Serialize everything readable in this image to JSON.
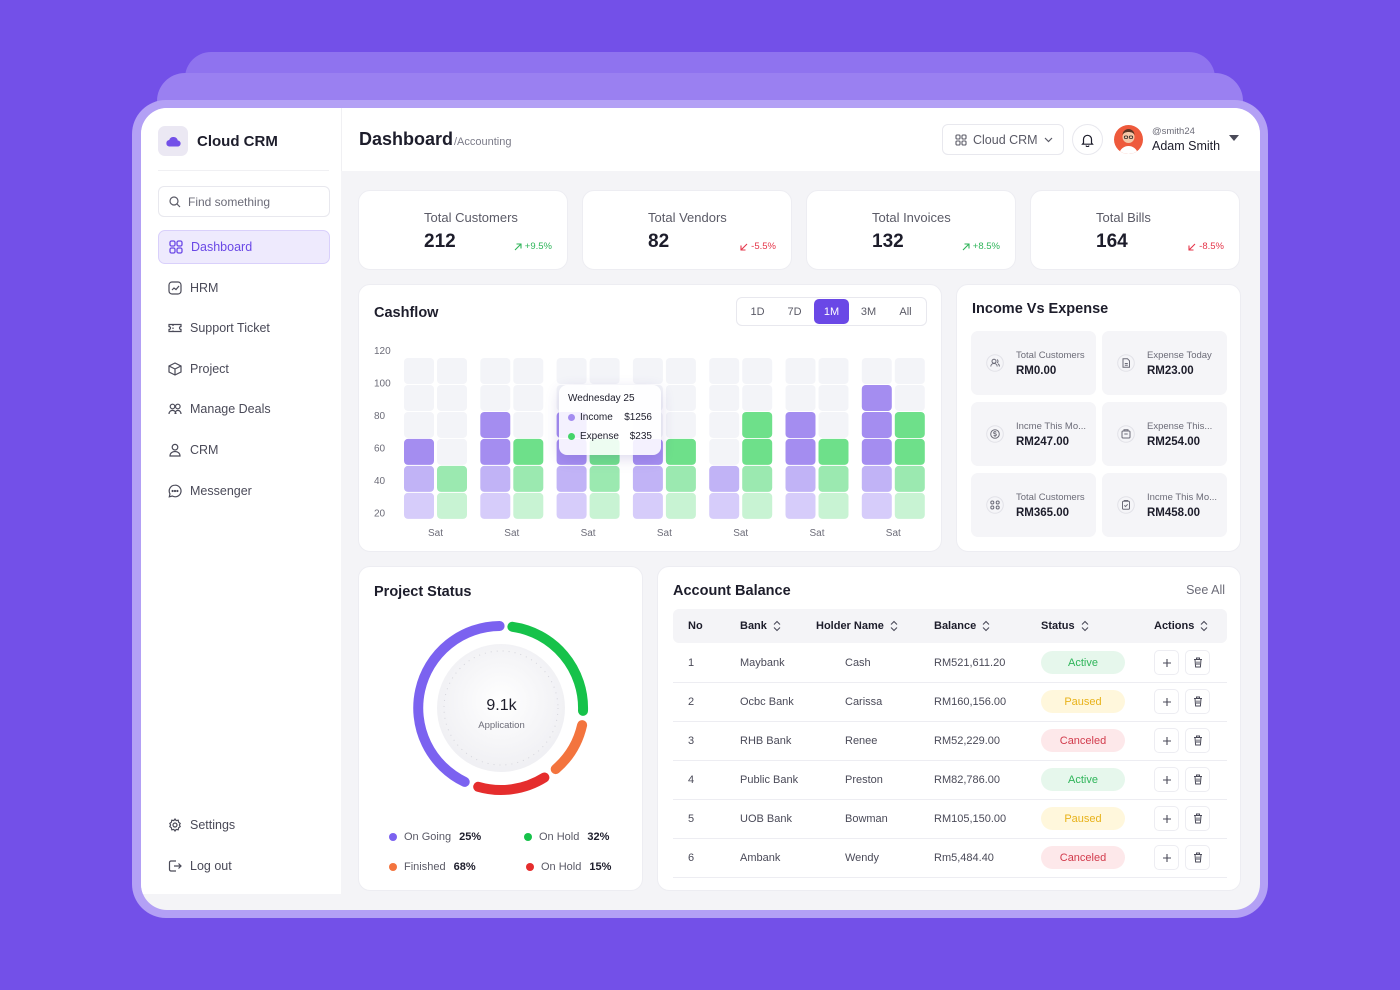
{
  "sidebar": {
    "brand": "Cloud CRM",
    "search_placeholder": "Find something",
    "items": [
      {
        "label": "Dashboard"
      },
      {
        "label": "HRM"
      },
      {
        "label": "Support Ticket"
      },
      {
        "label": "Project"
      },
      {
        "label": "Manage Deals"
      },
      {
        "label": "CRM"
      },
      {
        "label": "Messenger"
      }
    ],
    "settings_label": "Settings",
    "logout_label": "Log out"
  },
  "header": {
    "title": "Dashboard",
    "subtitle": "/Accounting",
    "workspace": "Cloud CRM",
    "user_handle": "@smith24",
    "user_name": "Adam Smith"
  },
  "stats": [
    {
      "label": "Total Customers",
      "value": "212",
      "change": "+9.5%",
      "trend": "up",
      "color": "#f7921e"
    },
    {
      "label": "Total Vendors",
      "value": "82",
      "change": "-5.5%",
      "trend": "down",
      "color": "#2860e8"
    },
    {
      "label": "Total Invoices",
      "value": "132",
      "change": "+8.5%",
      "trend": "up",
      "color": "#e5364a"
    },
    {
      "label": "Total Bills",
      "value": "164",
      "change": "-8.5%",
      "trend": "down",
      "color": "#2db84e"
    }
  ],
  "cashflow": {
    "title": "Cashflow",
    "ranges": [
      "1D",
      "7D",
      "1M",
      "3M",
      "All"
    ],
    "active_range": "1M",
    "tooltip": {
      "date": "Wednesday 25",
      "income_label": "Income",
      "income_value": "$1256",
      "expense_label": "Expense",
      "expense_value": "$235"
    }
  },
  "chart_data": {
    "type": "bar",
    "y_ticks": [
      "120",
      "100",
      "80",
      "60",
      "40",
      "20"
    ],
    "categories": [
      "Sat",
      "Sat",
      "Sat",
      "Sat",
      "Sat",
      "Sat",
      "Sat"
    ],
    "series": [
      {
        "name": "Income",
        "values": [
          60,
          80,
          80,
          60,
          40,
          80,
          100
        ]
      },
      {
        "name": "Expense",
        "values": [
          40,
          60,
          60,
          60,
          80,
          60,
          80
        ]
      }
    ],
    "ylim": [
      20,
      120
    ],
    "colors": {
      "income": "#a48df0",
      "expense": "#6ee08a"
    }
  },
  "income_vs_expense": {
    "title": "Income Vs Expense",
    "tiles": [
      {
        "label": "Total Customers",
        "value": "RM0.00",
        "icon": "users-icon"
      },
      {
        "label": "Expense Today",
        "value": "RM23.00",
        "icon": "receipt-icon"
      },
      {
        "label": "Incme This Mo...",
        "value": "RM247.00",
        "icon": "dollar-icon"
      },
      {
        "label": "Expense This...",
        "value": "RM254.00",
        "icon": "wallet-icon"
      },
      {
        "label": "Total Customers",
        "value": "RM365.00",
        "icon": "group-icon"
      },
      {
        "label": "Incme This Mo...",
        "value": "RM458.00",
        "icon": "clipboard-icon"
      }
    ]
  },
  "project_status": {
    "title": "Project Status",
    "center_value": "9.1k",
    "center_label": "Application",
    "legend": [
      {
        "label": "On Going",
        "percent": "25%",
        "color": "#7b62f0"
      },
      {
        "label": "On Hold",
        "percent": "32%",
        "color": "#16c24a"
      },
      {
        "label": "Finished",
        "percent": "68%",
        "color": "#f3743e"
      },
      {
        "label": "On Hold",
        "percent": "15%",
        "color": "#e52d2d"
      }
    ]
  },
  "account_balance": {
    "title": "Account Balance",
    "see_all": "See All",
    "columns": [
      "No",
      "Bank",
      "Holder Name",
      "Balance",
      "Status",
      "Actions"
    ],
    "rows": [
      {
        "no": "1",
        "bank": "Maybank",
        "holder": "Cash",
        "balance": "RM521,611.20",
        "status": "Active"
      },
      {
        "no": "2",
        "bank": "Ocbc Bank",
        "holder": "Carissa",
        "balance": "RM160,156.00",
        "status": "Paused"
      },
      {
        "no": "3",
        "bank": "RHB Bank",
        "holder": "Renee",
        "balance": "RM52,229.00",
        "status": "Canceled"
      },
      {
        "no": "4",
        "bank": "Public Bank",
        "holder": "Preston",
        "balance": "RM82,786.00",
        "status": "Active"
      },
      {
        "no": "5",
        "bank": "UOB Bank",
        "holder": "Bowman",
        "balance": "RM105,150.00",
        "status": "Paused"
      },
      {
        "no": "6",
        "bank": "Ambank",
        "holder": "Wendy",
        "balance": "Rm5,484.40",
        "status": "Canceled"
      }
    ]
  }
}
